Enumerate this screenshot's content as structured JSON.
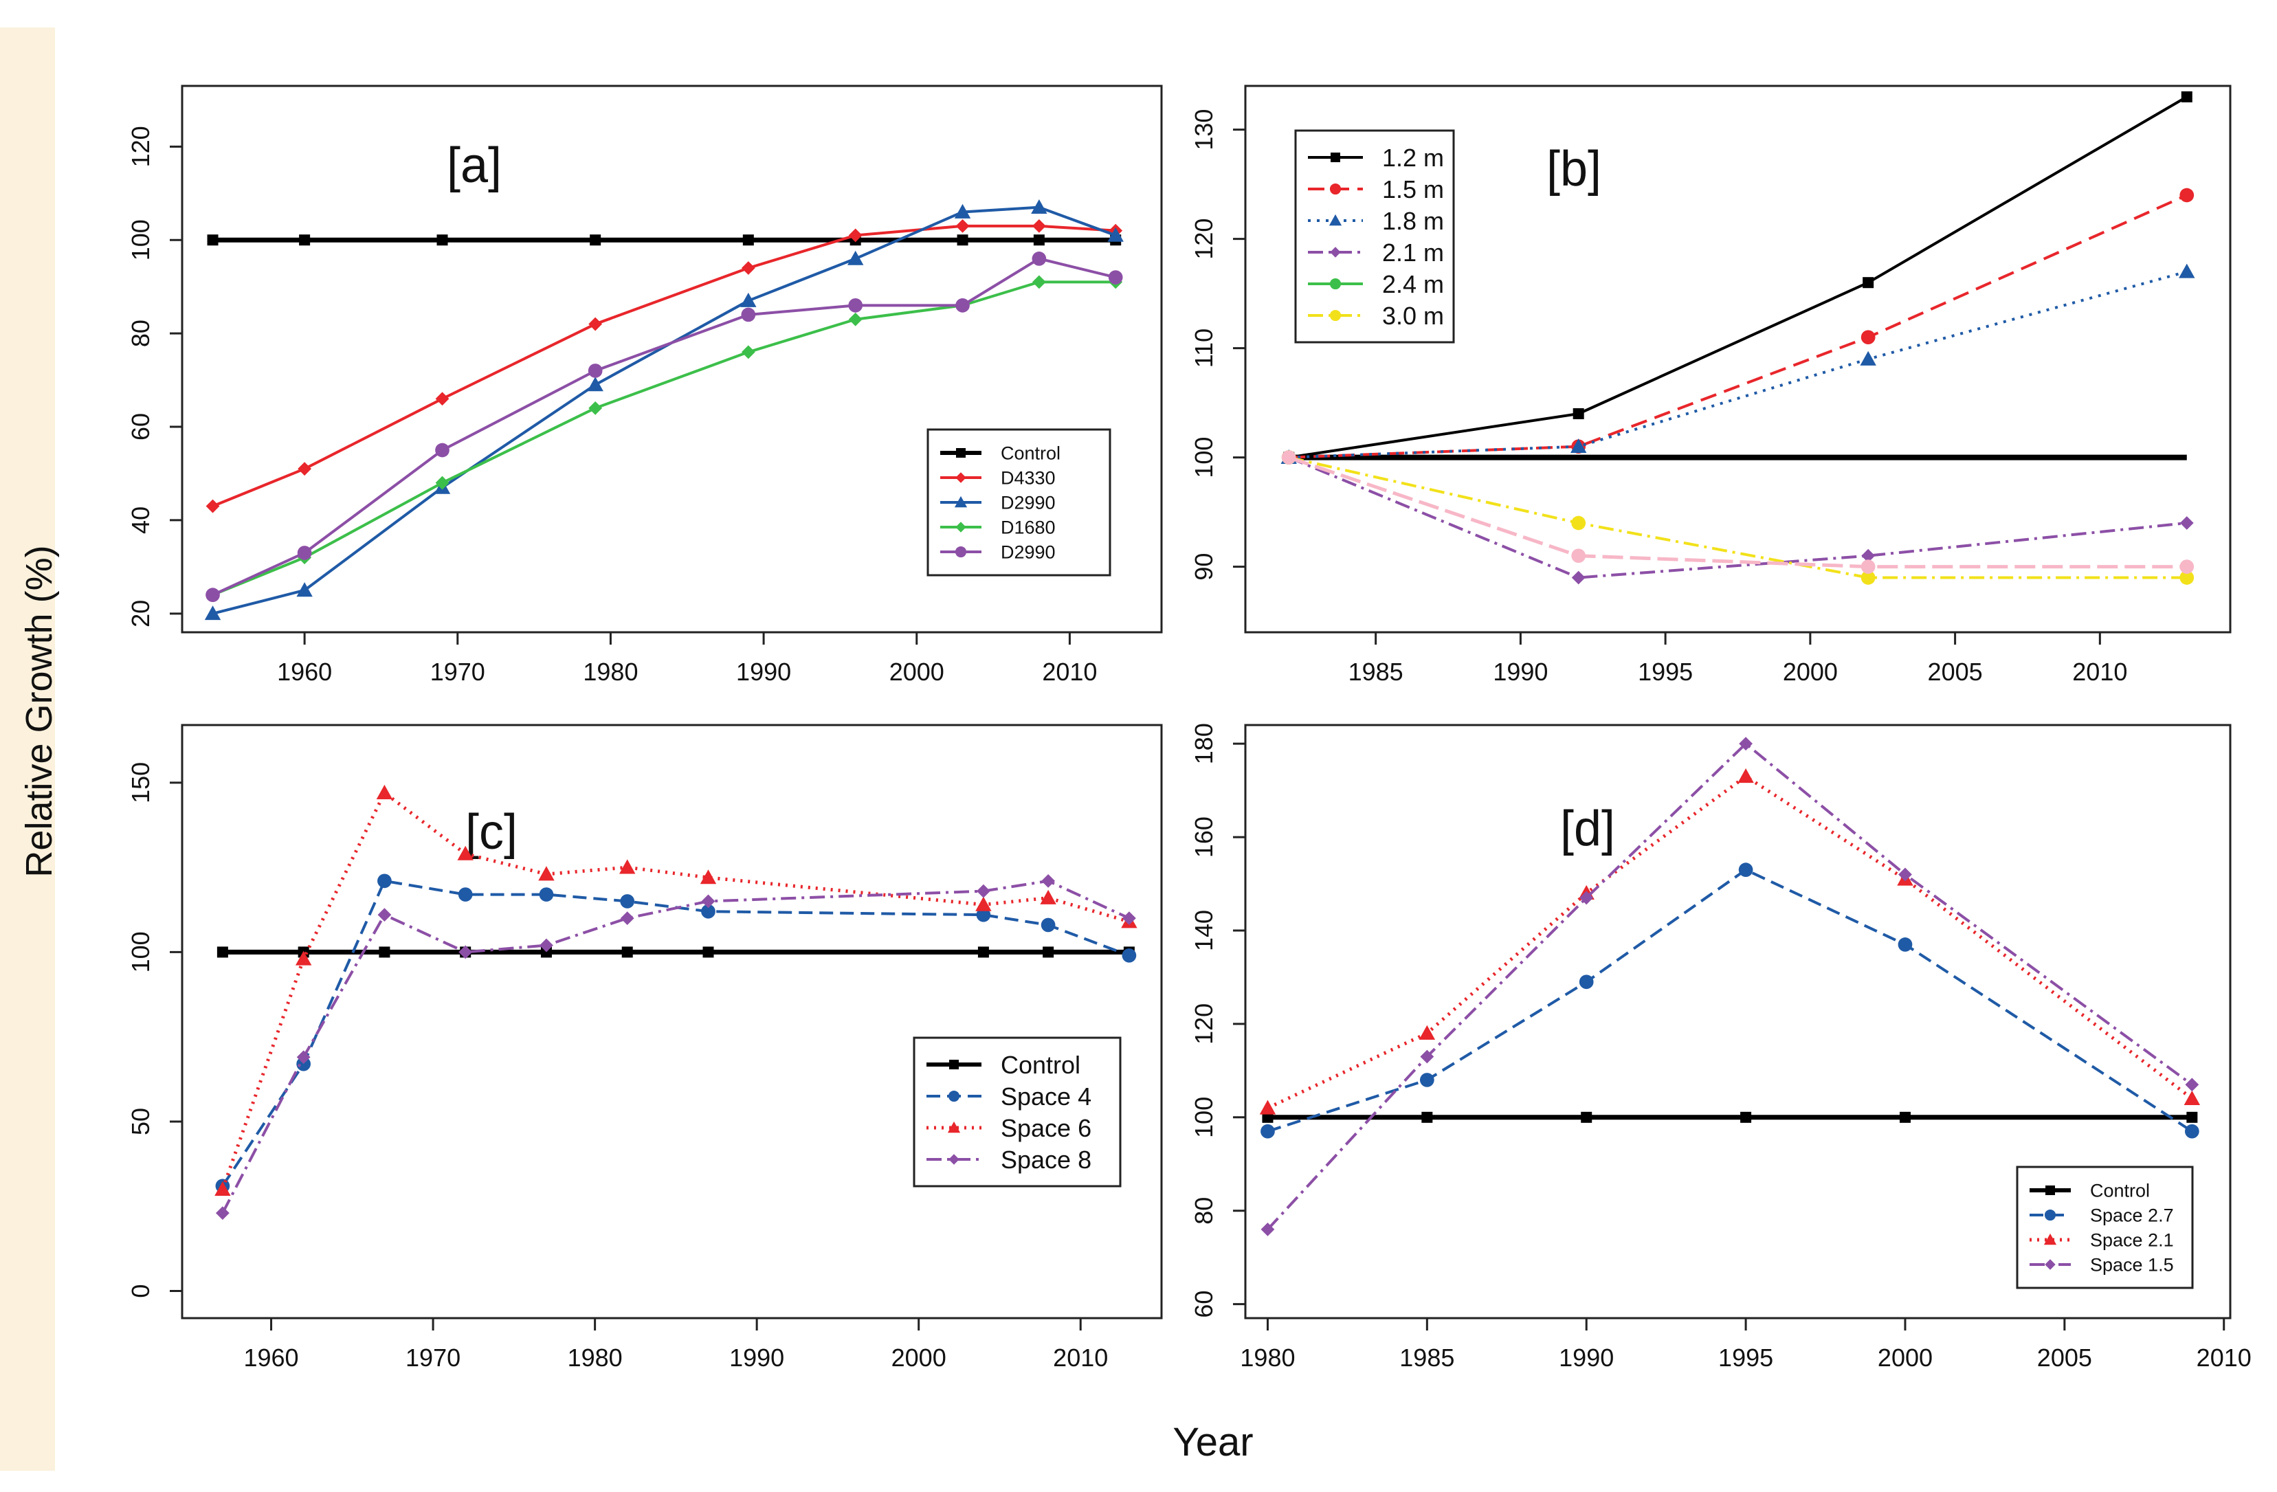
{
  "figure": {
    "ylabel": "Relative Growth (%)",
    "xlabel": "Year"
  },
  "chart_data": [
    {
      "id": "a",
      "type": "line",
      "title": "[a]",
      "xlabel": "",
      "ylabel": "",
      "xlim": [
        1952,
        2016
      ],
      "ylim": [
        16,
        133
      ],
      "xticks": [
        1960,
        1970,
        1980,
        1990,
        2000,
        2010
      ],
      "yticks": [
        20,
        40,
        60,
        80,
        100,
        120
      ],
      "legend_position": "bottom-right",
      "legend_size": "small",
      "series": [
        {
          "name": "Control",
          "color": "#000000",
          "dash": "",
          "marker": "square",
          "width": 7,
          "x": [
            1954,
            1960,
            1969,
            1979,
            1989,
            1996,
            2003,
            2008,
            2013
          ],
          "y": [
            100,
            100,
            100,
            100,
            100,
            100,
            100,
            100,
            100
          ]
        },
        {
          "name": "D4330",
          "color": "#e8262b",
          "dash": "",
          "marker": "diamond",
          "width": 4,
          "x": [
            1954,
            1960,
            1969,
            1979,
            1989,
            1996,
            2003,
            2008,
            2013
          ],
          "y": [
            43,
            51,
            66,
            82,
            94,
            101,
            103,
            103,
            102
          ]
        },
        {
          "name": "D2990",
          "color": "#1f5aa6",
          "dash": "",
          "marker": "triangle",
          "width": 4,
          "x": [
            1954,
            1960,
            1969,
            1979,
            1989,
            1996,
            2003,
            2008,
            2013
          ],
          "y": [
            20,
            25,
            47,
            69,
            87,
            96,
            106,
            107,
            101
          ]
        },
        {
          "name": "D1680",
          "color": "#3cbf4a",
          "dash": "",
          "marker": "diamond",
          "width": 4,
          "x": [
            1954,
            1960,
            1969,
            1979,
            1989,
            1996,
            2003,
            2008,
            2013
          ],
          "y": [
            24,
            32,
            48,
            64,
            76,
            83,
            86,
            91,
            91
          ]
        },
        {
          "name": "D2990",
          "color": "#8c4fa6",
          "dash": "",
          "marker": "circle",
          "width": 4,
          "x": [
            1954,
            1960,
            1969,
            1979,
            1989,
            1996,
            2003,
            2008,
            2013
          ],
          "y": [
            24,
            33,
            55,
            72,
            84,
            86,
            86,
            96,
            92
          ]
        }
      ]
    },
    {
      "id": "b",
      "type": "line",
      "title": "[b]",
      "xlabel": "",
      "ylabel": "",
      "xlim": [
        1980.5,
        2014.5
      ],
      "ylim": [
        84,
        134
      ],
      "xticks": [
        1985,
        1990,
        1995,
        2000,
        2005,
        2010
      ],
      "yticks": [
        90,
        100,
        110,
        120,
        130
      ],
      "legend_position": "top-left",
      "legend_size": "large",
      "series": [
        {
          "name": "Control",
          "color": "#000000",
          "dash": "",
          "marker": "none",
          "width": 8,
          "legend": false,
          "x": [
            1982,
            2013
          ],
          "y": [
            100,
            100
          ]
        },
        {
          "name": "1.2 m",
          "color": "#000000",
          "dash": "",
          "marker": "square",
          "width": 4,
          "x": [
            1982,
            1992,
            2002,
            2013
          ],
          "y": [
            100,
            104,
            116,
            133
          ]
        },
        {
          "name": "1.5 m",
          "color": "#e8262b",
          "dash": "24 12",
          "marker": "circle",
          "width": 4,
          "x": [
            1982,
            1992,
            2002,
            2013
          ],
          "y": [
            100,
            101,
            111,
            124
          ]
        },
        {
          "name": "1.8 m",
          "color": "#1f5aa6",
          "dash": "4 9",
          "marker": "triangle",
          "width": 4,
          "x": [
            1982,
            1992,
            2002,
            2013
          ],
          "y": [
            100,
            101,
            109,
            117
          ]
        },
        {
          "name": "2.1 m",
          "color": "#8c4fa6",
          "dash": "22 8 4 8",
          "marker": "diamond",
          "width": 4,
          "x": [
            1982,
            1992,
            2002,
            2013
          ],
          "y": [
            100,
            89,
            91,
            94
          ]
        },
        {
          "name": "2.4 m",
          "color": "#3cbf4a",
          "dash": "",
          "marker": "circle",
          "width": 4,
          "x": [
            1982
          ],
          "y": [
            100
          ]
        },
        {
          "name": "3.0 m",
          "color": "#f2e11a",
          "dash": "22 8 4 8",
          "marker": "circle",
          "width": 4,
          "x": [
            1982,
            1992,
            2002,
            2013
          ],
          "y": [
            100,
            94,
            89,
            89
          ]
        },
        {
          "name": "",
          "color": "#f7b7c7",
          "dash": "30 10",
          "marker": "circle",
          "width": 5,
          "legend": false,
          "x": [
            1982,
            1992,
            2002,
            2013
          ],
          "y": [
            100,
            91,
            90,
            90
          ]
        }
      ]
    },
    {
      "id": "c",
      "type": "line",
      "title": "[c]",
      "xlabel": "",
      "ylabel": "",
      "xlim": [
        1954.5,
        2015
      ],
      "ylim": [
        -8,
        167
      ],
      "xticks": [
        1960,
        1970,
        1980,
        1990,
        2000,
        2010
      ],
      "yticks": [
        0,
        50,
        100,
        150
      ],
      "legend_position": "center-right",
      "legend_size": "large",
      "series": [
        {
          "name": "Control",
          "color": "#000000",
          "dash": "",
          "marker": "square",
          "width": 7,
          "x": [
            1957,
            1962,
            1967,
            1972,
            1977,
            1982,
            1987,
            2004,
            2008,
            2013
          ],
          "y": [
            100,
            100,
            100,
            100,
            100,
            100,
            100,
            100,
            100,
            100
          ]
        },
        {
          "name": "Space 4",
          "color": "#1f5aa6",
          "dash": "20 10",
          "marker": "circle",
          "width": 4,
          "x": [
            1957,
            1962,
            1967,
            1972,
            1977,
            1982,
            1987,
            2004,
            2008,
            2013
          ],
          "y": [
            31,
            67,
            121,
            117,
            117,
            115,
            112,
            111,
            108,
            99
          ]
        },
        {
          "name": "Space 6",
          "color": "#e8262b",
          "dash": "3 8",
          "marker": "triangle",
          "width": 5,
          "x": [
            1957,
            1962,
            1967,
            1972,
            1977,
            1982,
            1987,
            2004,
            2008,
            2013
          ],
          "y": [
            30,
            98,
            147,
            129,
            123,
            125,
            122,
            114,
            116,
            109
          ]
        },
        {
          "name": "Space 8",
          "color": "#8c4fa6",
          "dash": "22 8 4 8",
          "marker": "diamond",
          "width": 4,
          "x": [
            1957,
            1962,
            1967,
            1972,
            1977,
            1982,
            1987,
            2004,
            2008,
            2013
          ],
          "y": [
            23,
            69,
            111,
            100,
            102,
            110,
            115,
            118,
            121,
            110
          ]
        }
      ]
    },
    {
      "id": "d",
      "type": "line",
      "title": "[d]",
      "xlabel": "",
      "ylabel": "",
      "xlim": [
        1979.3,
        2010.2
      ],
      "ylim": [
        57,
        184
      ],
      "xticks": [
        1980,
        1985,
        1990,
        1995,
        2000,
        2005,
        2010
      ],
      "yticks": [
        60,
        80,
        100,
        120,
        140,
        160,
        180
      ],
      "legend_position": "bottom-right",
      "legend_size": "small",
      "series": [
        {
          "name": "Control",
          "color": "#000000",
          "dash": "",
          "marker": "square",
          "width": 7,
          "x": [
            1980,
            1985,
            1990,
            1995,
            2000,
            2009
          ],
          "y": [
            100,
            100,
            100,
            100,
            100,
            100
          ]
        },
        {
          "name": "Space 2.7",
          "color": "#1f5aa6",
          "dash": "20 10",
          "marker": "circle",
          "width": 4,
          "x": [
            1980,
            1985,
            1990,
            1995,
            2000,
            2009
          ],
          "y": [
            97,
            108,
            129,
            153,
            137,
            97
          ]
        },
        {
          "name": "Space 2.1",
          "color": "#e8262b",
          "dash": "3 8",
          "marker": "triangle",
          "width": 5,
          "x": [
            1980,
            1985,
            1990,
            1995,
            2000,
            2009
          ],
          "y": [
            102,
            118,
            148,
            173,
            151,
            104
          ]
        },
        {
          "name": "Space 1.5",
          "color": "#8c4fa6",
          "dash": "22 8 4 8",
          "marker": "diamond",
          "width": 4,
          "x": [
            1980,
            1985,
            1990,
            1995,
            2000,
            2009
          ],
          "y": [
            76,
            113,
            147,
            180,
            152,
            107
          ]
        }
      ]
    }
  ]
}
